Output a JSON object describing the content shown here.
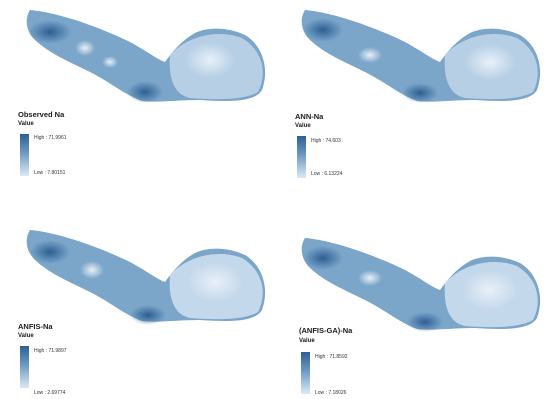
{
  "panels": [
    {
      "title": "Observed Na",
      "legend_title": "Value",
      "high": "High : 71.9961",
      "low": "Low : 7.80151"
    },
    {
      "title": "ANN-Na",
      "legend_title": "Value",
      "high": "High : 74.603",
      "low": "Low : 6.13224"
    },
    {
      "title": "ANFIS-Na",
      "legend_title": "Value",
      "high": "High : 71.9897",
      "low": "Low : 2.69774"
    },
    {
      "title": "(ANFIS-GA)-Na",
      "legend_title": "Value",
      "high": "High : 71.8592",
      "low": "Low : 7.18026"
    }
  ],
  "colors": {
    "high": "#2d5f93",
    "mid": "#6d9ac2",
    "low": "#dde9f4"
  }
}
